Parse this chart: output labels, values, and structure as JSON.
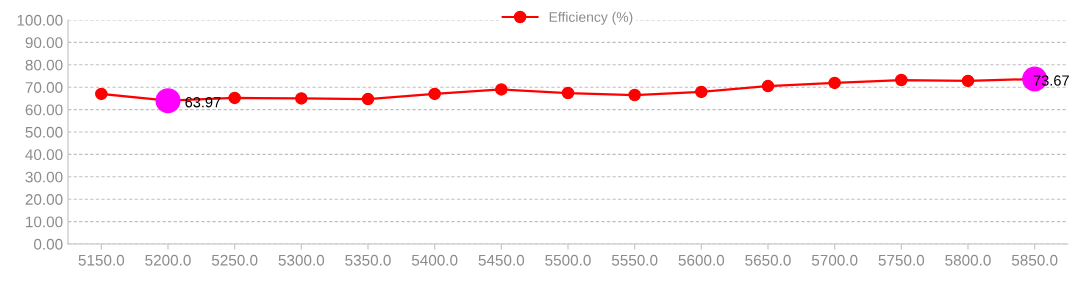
{
  "chart_data": {
    "type": "line",
    "categories": [
      "5150.0",
      "5200.0",
      "5250.0",
      "5300.0",
      "5350.0",
      "5400.0",
      "5450.0",
      "5500.0",
      "5550.0",
      "5600.0",
      "5650.0",
      "5700.0",
      "5750.0",
      "5800.0",
      "5850.0"
    ],
    "series": [
      {
        "name": "Efficiency (%)",
        "color": "#ff0000",
        "values": [
          67.0,
          63.97,
          65.2,
          65.0,
          64.7,
          67.0,
          69.0,
          67.4,
          66.5,
          67.9,
          70.5,
          71.9,
          73.2,
          72.8,
          73.67
        ],
        "colors": [
          "#ff0000",
          "#ff00ff",
          "#ff0000",
          "#ff0000",
          "#ff0000",
          "#ff0000",
          "#ff0000",
          "#ff0000",
          "#ff0000",
          "#ff0000",
          "#ff0000",
          "#ff0000",
          "#ff0000",
          "#ff0000",
          "#ff00ff"
        ],
        "value_labels": [
          null,
          "63.97",
          null,
          null,
          null,
          null,
          null,
          null,
          null,
          null,
          null,
          null,
          null,
          null,
          "73.67"
        ]
      }
    ],
    "ylim": [
      0,
      100
    ],
    "yticks": [
      {
        "value": 0,
        "label": "0.00"
      },
      {
        "value": 10,
        "label": "10.00"
      },
      {
        "value": 20,
        "label": "20.00"
      },
      {
        "value": 30,
        "label": "30.00"
      },
      {
        "value": 40,
        "label": "40.00"
      },
      {
        "value": 50,
        "label": "50.00"
      },
      {
        "value": 60,
        "label": "60.00"
      },
      {
        "value": 70,
        "label": "70.00"
      },
      {
        "value": 80,
        "label": "80.00"
      },
      {
        "value": 90,
        "label": "90.00"
      },
      {
        "value": 100,
        "label": "100.00"
      }
    ],
    "grid": "y",
    "legend": "top",
    "marker": "circle",
    "line_style": "solid"
  }
}
